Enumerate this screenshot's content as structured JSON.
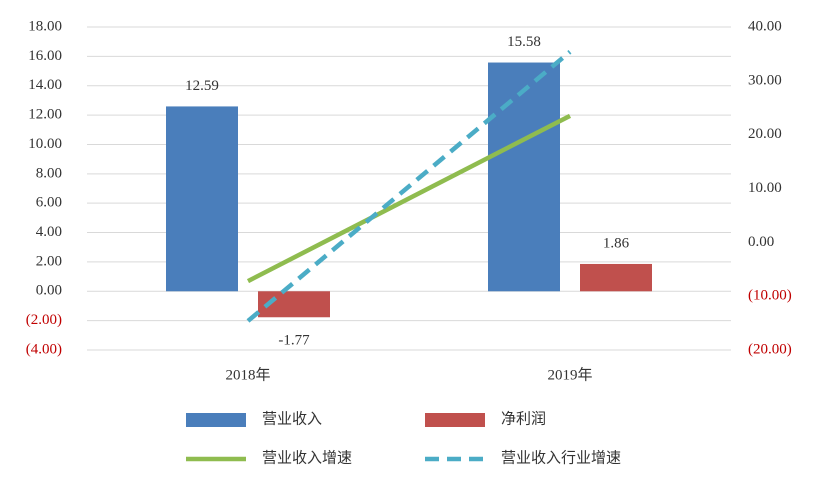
{
  "chart_data": {
    "type": "bar",
    "categories": [
      "2018年",
      "2019年"
    ],
    "series": [
      {
        "name": "营业收入",
        "type": "bar",
        "color": "#4a7ebb",
        "values": [
          12.59,
          15.58
        ]
      },
      {
        "name": "净利润",
        "type": "bar",
        "color": "#c0504d",
        "values": [
          -1.77,
          1.86
        ]
      },
      {
        "name": "营业收入增速",
        "type": "line",
        "axis": "y2",
        "color": "#8fbc4f",
        "dashed": false,
        "values": [
          -7.2,
          23.5
        ]
      },
      {
        "name": "营业收入行业增速",
        "type": "line",
        "axis": "y2",
        "color": "#4bacc6",
        "dashed": true,
        "values": [
          -14.6,
          35.4
        ]
      }
    ],
    "ylim": [
      -4,
      18
    ],
    "yticks": [
      {
        "value": -4,
        "label": "(4.00)"
      },
      {
        "value": -2,
        "label": "(2.00)"
      },
      {
        "value": 0,
        "label": "0.00"
      },
      {
        "value": 2,
        "label": "2.00"
      },
      {
        "value": 4,
        "label": "4.00"
      },
      {
        "value": 6,
        "label": "6.00"
      },
      {
        "value": 8,
        "label": "8.00"
      },
      {
        "value": 10,
        "label": "10.00"
      },
      {
        "value": 12,
        "label": "12.00"
      },
      {
        "value": 14,
        "label": "14.00"
      },
      {
        "value": 16,
        "label": "16.00"
      },
      {
        "value": 18,
        "label": "18.00"
      }
    ],
    "y2lim": [
      -20,
      40
    ],
    "y2ticks": [
      {
        "value": -20,
        "label": "(20.00)"
      },
      {
        "value": -10,
        "label": "(10.00)"
      },
      {
        "value": 0,
        "label": "0.00"
      },
      {
        "value": 10,
        "label": "10.00"
      },
      {
        "value": 20,
        "label": "20.00"
      },
      {
        "value": 30,
        "label": "30.00"
      },
      {
        "value": 40,
        "label": "40.00"
      }
    ],
    "negative_tick_color": "#c00000",
    "grid": true
  }
}
